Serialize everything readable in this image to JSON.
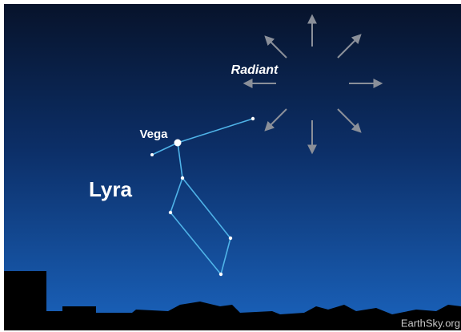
{
  "labels": {
    "radiant": "Radiant",
    "star": "Vega",
    "constellation": "Lyra",
    "credit": "EarthSky.org"
  }
}
